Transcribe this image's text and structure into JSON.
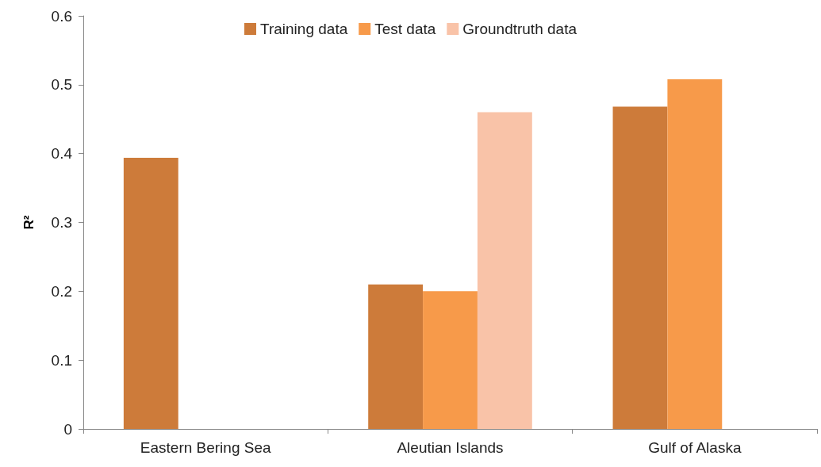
{
  "chart_data": {
    "type": "bar",
    "ylabel": "R²",
    "categories": [
      "Eastern Bering Sea",
      "Aleutian Islands",
      "Gulf of Alaska"
    ],
    "series": [
      {
        "name": "Training data",
        "color": "#cd7b3a",
        "values": [
          0.394,
          0.21,
          0.468
        ]
      },
      {
        "name": "Test data",
        "color": "#f79a4a",
        "values": [
          null,
          0.2,
          0.508
        ]
      },
      {
        "name": "Groundtruth data",
        "color": "#f9c3a8",
        "values": [
          null,
          0.46,
          null
        ]
      }
    ],
    "ylim": [
      0,
      0.6
    ],
    "yticks": [
      0,
      0.1,
      0.2,
      0.3,
      0.4,
      0.5,
      0.6
    ],
    "grid": false,
    "legend": "top"
  }
}
